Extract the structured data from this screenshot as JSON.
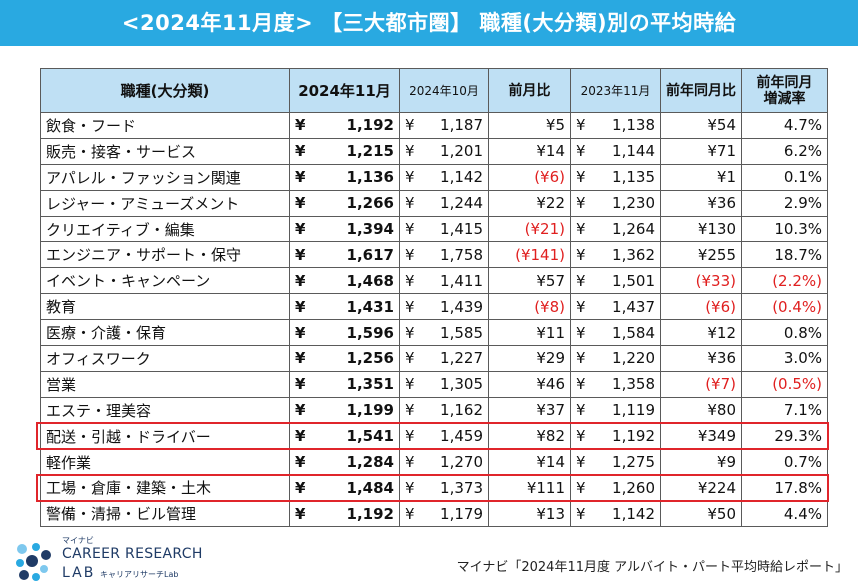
{
  "title": "<2024年11月度> 【三大都市圏】 職種(大分類)別の平均時給",
  "headers": {
    "category": "職種(大分類)",
    "current": "2024年11月",
    "prev_month": "2024年10月",
    "mom": "前月比",
    "prev_year": "2023年11月",
    "yoy": "前年同月比",
    "yoy_rate_line1": "前年同月",
    "yoy_rate_line2": "増減率"
  },
  "yen_symbol": "¥",
  "rows": [
    {
      "category": "飲食・フード",
      "current": "1,192",
      "prev_month": "1,187",
      "mom": "¥5",
      "prev_year": "1,138",
      "yoy": "¥54",
      "yoy_rate": "4.7%"
    },
    {
      "category": "販売・接客・サービス",
      "current": "1,215",
      "prev_month": "1,201",
      "mom": "¥14",
      "prev_year": "1,144",
      "yoy": "¥71",
      "yoy_rate": "6.2%"
    },
    {
      "category": "アパレル・ファッション関連",
      "current": "1,136",
      "prev_month": "1,142",
      "mom": "(¥6)",
      "prev_year": "1,135",
      "yoy": "¥1",
      "yoy_rate": "0.1%"
    },
    {
      "category": "レジャー・アミューズメント",
      "current": "1,266",
      "prev_month": "1,244",
      "mom": "¥22",
      "prev_year": "1,230",
      "yoy": "¥36",
      "yoy_rate": "2.9%"
    },
    {
      "category": "クリエイティブ・編集",
      "current": "1,394",
      "prev_month": "1,415",
      "mom": "(¥21)",
      "prev_year": "1,264",
      "yoy": "¥130",
      "yoy_rate": "10.3%"
    },
    {
      "category": "エンジニア・サポート・保守",
      "current": "1,617",
      "prev_month": "1,758",
      "mom": "(¥141)",
      "prev_year": "1,362",
      "yoy": "¥255",
      "yoy_rate": "18.7%"
    },
    {
      "category": "イベント・キャンペーン",
      "current": "1,468",
      "prev_month": "1,411",
      "mom": "¥57",
      "prev_year": "1,501",
      "yoy": "(¥33)",
      "yoy_rate": "(2.2%)"
    },
    {
      "category": "教育",
      "current": "1,431",
      "prev_month": "1,439",
      "mom": "(¥8)",
      "prev_year": "1,437",
      "yoy": "(¥6)",
      "yoy_rate": "(0.4%)"
    },
    {
      "category": "医療・介護・保育",
      "current": "1,596",
      "prev_month": "1,585",
      "mom": "¥11",
      "prev_year": "1,584",
      "yoy": "¥12",
      "yoy_rate": "0.8%"
    },
    {
      "category": "オフィスワーク",
      "current": "1,256",
      "prev_month": "1,227",
      "mom": "¥29",
      "prev_year": "1,220",
      "yoy": "¥36",
      "yoy_rate": "3.0%"
    },
    {
      "category": "営業",
      "current": "1,351",
      "prev_month": "1,305",
      "mom": "¥46",
      "prev_year": "1,358",
      "yoy": "(¥7)",
      "yoy_rate": "(0.5%)"
    },
    {
      "category": "エステ・理美容",
      "current": "1,199",
      "prev_month": "1,162",
      "mom": "¥37",
      "prev_year": "1,119",
      "yoy": "¥80",
      "yoy_rate": "7.1%"
    },
    {
      "category": "配送・引越・ドライバー",
      "current": "1,541",
      "prev_month": "1,459",
      "mom": "¥82",
      "prev_year": "1,192",
      "yoy": "¥349",
      "yoy_rate": "29.3%",
      "highlight": true
    },
    {
      "category": "軽作業",
      "current": "1,284",
      "prev_month": "1,270",
      "mom": "¥14",
      "prev_year": "1,275",
      "yoy": "¥9",
      "yoy_rate": "0.7%"
    },
    {
      "category": "工場・倉庫・建築・土木",
      "current": "1,484",
      "prev_month": "1,373",
      "mom": "¥111",
      "prev_year": "1,260",
      "yoy": "¥224",
      "yoy_rate": "17.8%",
      "highlight": true
    },
    {
      "category": "警備・清掃・ビル管理",
      "current": "1,192",
      "prev_month": "1,179",
      "mom": "¥13",
      "prev_year": "1,142",
      "yoy": "¥50",
      "yoy_rate": "4.4%"
    }
  ],
  "source": "マイナビ「2024年11月度 アルバイト・パート平均時給レポート」",
  "logo": {
    "small": "マイナビ",
    "main": "CAREER RESEARCH",
    "lab": "LAB",
    "kana": "キャリアリサーチLab"
  },
  "colors": {
    "title_bg": "#29a9e1",
    "header_bg": "#bfe0f4",
    "negative": "#e02020",
    "highlight_border": "#e0252b"
  },
  "chart_data": {
    "type": "table",
    "title": "<2024年11月度> 【三大都市圏】 職種(大分類)別の平均時給",
    "columns": [
      "職種(大分類)",
      "2024年11月",
      "2024年10月",
      "前月比",
      "2023年11月",
      "前年同月比",
      "前年同月増減率"
    ],
    "categories": [
      "飲食・フード",
      "販売・接客・サービス",
      "アパレル・ファッション関連",
      "レジャー・アミューズメント",
      "クリエイティブ・編集",
      "エンジニア・サポート・保守",
      "イベント・キャンペーン",
      "教育",
      "医療・介護・保育",
      "オフィスワーク",
      "営業",
      "エステ・理美容",
      "配送・引越・ドライバー",
      "軽作業",
      "工場・倉庫・建築・土木",
      "警備・清掃・ビル管理"
    ],
    "series": [
      {
        "name": "2024年11月",
        "values": [
          1192,
          1215,
          1136,
          1266,
          1394,
          1617,
          1468,
          1431,
          1596,
          1256,
          1351,
          1199,
          1541,
          1284,
          1484,
          1192
        ]
      },
      {
        "name": "2024年10月",
        "values": [
          1187,
          1201,
          1142,
          1244,
          1415,
          1758,
          1411,
          1439,
          1585,
          1227,
          1305,
          1162,
          1459,
          1270,
          1373,
          1179
        ]
      },
      {
        "name": "前月比",
        "values": [
          5,
          14,
          -6,
          22,
          -21,
          -141,
          57,
          -8,
          11,
          29,
          46,
          37,
          82,
          14,
          111,
          13
        ]
      },
      {
        "name": "2023年11月",
        "values": [
          1138,
          1144,
          1135,
          1230,
          1264,
          1362,
          1501,
          1437,
          1584,
          1220,
          1358,
          1119,
          1192,
          1275,
          1260,
          1142
        ]
      },
      {
        "name": "前年同月比",
        "values": [
          54,
          71,
          1,
          36,
          130,
          255,
          -33,
          -6,
          12,
          36,
          -7,
          80,
          349,
          9,
          224,
          50
        ]
      },
      {
        "name": "前年同月増減率(%)",
        "values": [
          4.7,
          6.2,
          0.1,
          2.9,
          10.3,
          18.7,
          -2.2,
          -0.4,
          0.8,
          3.0,
          -0.5,
          7.1,
          29.3,
          0.7,
          17.8,
          4.4
        ]
      }
    ]
  }
}
